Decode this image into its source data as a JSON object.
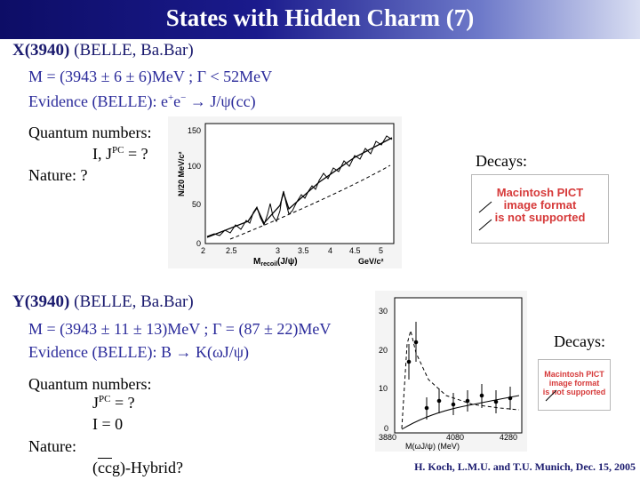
{
  "header": {
    "title": "States with Hidden Charm (7)"
  },
  "x3940": {
    "name": "X(3940)",
    "exps": " (BELLE, Ba.Bar)",
    "mass_line": "M = (3943 ± 6 ± 6)MeV ; Γ < 52MeV",
    "evidence_prefix": "Evidence (BELLE): e",
    "evidence_mid": "e",
    "evidence_suffix": " → J/ψ(cc)",
    "qn_label": "Quantum numbers:",
    "qn_value": "I, J",
    "qn_pc": "PC",
    "qn_tail": " = ?",
    "nature": "Nature: ?",
    "decays": "Decays:",
    "plot": {
      "yticks": [
        "150",
        "100",
        "50",
        "0"
      ],
      "xticks": [
        "2",
        "2.5",
        "3",
        "3.5",
        "4",
        "4.5",
        "5"
      ],
      "ylabel": "N/20 MeV/c²",
      "xlabel": "M",
      "xlabel_sub": "recoil",
      "xlabel_tail": "(J/ψ)",
      "xunit": "GeV/c²"
    },
    "pict": {
      "line1": "Macintosh PICT",
      "line2": "image format",
      "line3": "is not supported"
    }
  },
  "y3940": {
    "name": "Y(3940)",
    "exps": " (BELLE, Ba.Bar)",
    "mass_line": "M = (3943 ± 11 ± 13)MeV ; Γ = (87 ± 22)MeV",
    "evidence": "Evidence (BELLE): B → K(ωJ/ψ)",
    "qn_label": "Quantum numbers:",
    "jpc_prefix": "J",
    "jpc_pc": "PC",
    "jpc_tail": " = ?",
    "isospin": "I = 0",
    "nature": "Nature:",
    "hybrid_bar": "cc",
    "hybrid_tail": "g)-Hybrid?",
    "hybrid_open": "(",
    "decays": "Decays:",
    "plot": {
      "yticks": [
        "30",
        "20",
        "10",
        "0"
      ],
      "xticks": [
        "3880",
        "4080",
        "4280"
      ],
      "xlabel": "M(ωJ/ψ) (MeV)"
    },
    "pict": {
      "line1": "Macintosh PICT",
      "line2": "image format",
      "line3": "is not supported"
    }
  },
  "footer": {
    "credit": "H. Koch, L.M.U. and T.U. Munich, Dec. 15, 2005"
  }
}
